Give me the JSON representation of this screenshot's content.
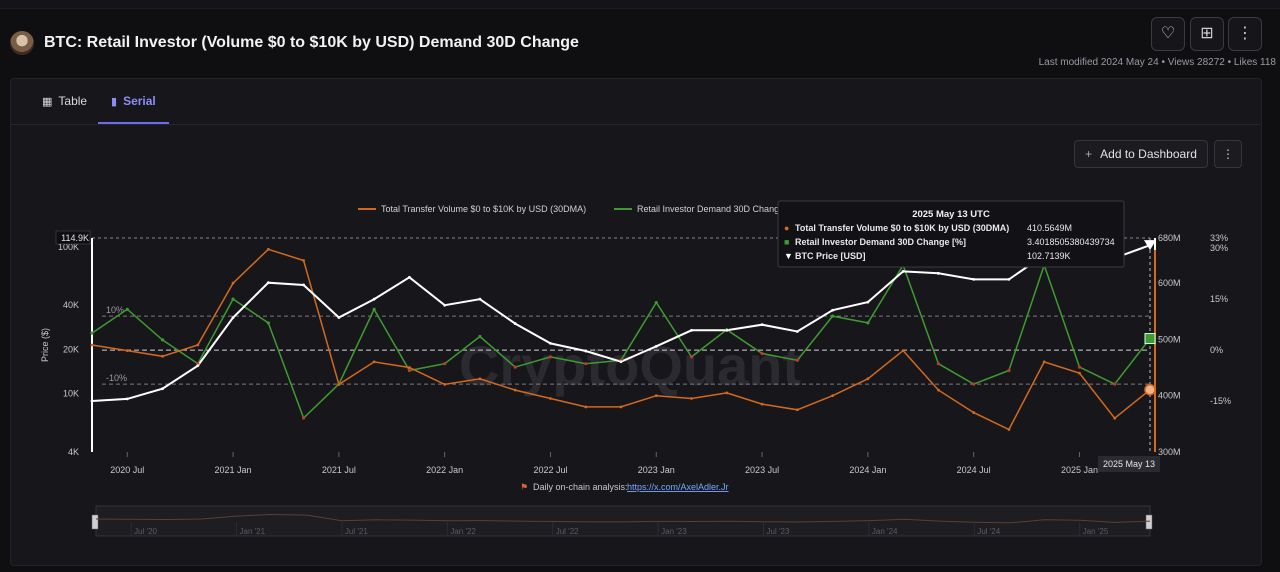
{
  "header": {
    "title": "BTC: Retail Investor (Volume $0 to $10K by USD) Demand 30D Change",
    "last_modified": "Last modified 2024 May 24",
    "views": "Views 28272",
    "likes": "Likes 118",
    "sep": "•",
    "buttons": [
      {
        "name": "like-button",
        "icon": "heart-icon",
        "glyph": "♡"
      },
      {
        "name": "bookmark-button",
        "icon": "bookmark-icon",
        "glyph": "⊞"
      },
      {
        "name": "more-button",
        "icon": "more-vertical-icon",
        "glyph": "⋮"
      }
    ]
  },
  "tabs": [
    {
      "label": "Table",
      "icon": "table-icon",
      "active": false
    },
    {
      "label": "Serial",
      "icon": "bar-chart-icon",
      "active": true
    }
  ],
  "toolbar": {
    "add_dashboard_label": "Add to Dashboard",
    "plus": "+",
    "menu_glyph": "⋮"
  },
  "colors": {
    "background": "#17171b",
    "volume": "#d2691e",
    "demand_pos": "#3f9b2f",
    "demand_neg": "#c0392b",
    "price": "#ffffff",
    "accent": "#6c6bf0"
  },
  "chart_data": {
    "type": "line",
    "legend": [
      {
        "name": "Total Transfer Volume $0 to $10K by USD (30DMA)",
        "color": "#d2691e"
      },
      {
        "name": "Retail Investor Demand 30D Change",
        "color": "#3f9b2f"
      }
    ],
    "legend_placement": "top-center",
    "watermark": "CryptoQuant",
    "x_ticks": [
      "2020 Jul",
      "2021 Jan",
      "2021 Jul",
      "2022 Jan",
      "2022 Jul",
      "2023 Jan",
      "2023 Jul",
      "2024 Jan",
      "2024 Jul",
      "2025 Jan"
    ],
    "x_range": [
      "2020-05",
      "2025-05"
    ],
    "left_axis": {
      "label": "Price ($)",
      "scale": "log",
      "ticks": [
        "4K",
        "10K",
        "20K",
        "40K",
        "100K"
      ],
      "range": [
        4,
        114.9
      ],
      "max_label": "114.9K"
    },
    "right_axis_volume": {
      "ticks": [
        "300M",
        "400M",
        "500M",
        "600M",
        "680M"
      ],
      "range": [
        300,
        680
      ]
    },
    "right_axis_pct": {
      "ticks": [
        "-15%",
        "0%",
        "15%",
        "30%",
        "33%"
      ],
      "range": [
        -30,
        33
      ]
    },
    "ref_lines": [
      {
        "label": "10%",
        "value": 10
      },
      {
        "label": "-10%",
        "value": -10
      }
    ],
    "series": [
      {
        "name": "BTC Price [USD]",
        "unit": "K USD",
        "axis": "left",
        "color": "#ffffff",
        "x": [
          "2020-05",
          "2020-07",
          "2020-09",
          "2020-11",
          "2021-01",
          "2021-03",
          "2021-05",
          "2021-07",
          "2021-09",
          "2021-11",
          "2022-01",
          "2022-03",
          "2022-05",
          "2022-07",
          "2022-09",
          "2022-11",
          "2023-01",
          "2023-03",
          "2023-05",
          "2023-07",
          "2023-09",
          "2023-11",
          "2024-01",
          "2024-03",
          "2024-05",
          "2024-07",
          "2024-09",
          "2024-11",
          "2025-01",
          "2025-03",
          "2025-05"
        ],
        "values": [
          8.9,
          9.2,
          10.8,
          15.5,
          33,
          57,
          55,
          33,
          44,
          62,
          40,
          44,
          30,
          22,
          19.5,
          16.5,
          21,
          27,
          27,
          29.5,
          26.5,
          37,
          42,
          68,
          66,
          60,
          60,
          88,
          100,
          84,
          102.7
        ]
      },
      {
        "name": "Total Transfer Volume $0 to $10K by USD (30DMA)",
        "unit": "M",
        "axis": "right_volume",
        "color": "#d2691e",
        "x": [
          "2020-05",
          "2020-07",
          "2020-09",
          "2020-11",
          "2021-01",
          "2021-03",
          "2021-05",
          "2021-07",
          "2021-09",
          "2021-11",
          "2022-01",
          "2022-03",
          "2022-05",
          "2022-07",
          "2022-09",
          "2022-11",
          "2023-01",
          "2023-03",
          "2023-05",
          "2023-07",
          "2023-09",
          "2023-11",
          "2024-01",
          "2024-03",
          "2024-05",
          "2024-07",
          "2024-09",
          "2024-11",
          "2025-01",
          "2025-03",
          "2025-05"
        ],
        "values": [
          490,
          480,
          470,
          490,
          600,
          660,
          640,
          420,
          460,
          450,
          420,
          430,
          410,
          395,
          380,
          380,
          400,
          395,
          405,
          385,
          375,
          400,
          430,
          480,
          410,
          370,
          340,
          460,
          440,
          360,
          410.56
        ]
      },
      {
        "name": "Retail Investor Demand 30D Change",
        "unit": "%",
        "axis": "right_pct",
        "color": "#3f9b2f",
        "x": [
          "2020-05",
          "2020-07",
          "2020-09",
          "2020-11",
          "2021-01",
          "2021-03",
          "2021-05",
          "2021-07",
          "2021-09",
          "2021-11",
          "2022-01",
          "2022-03",
          "2022-05",
          "2022-07",
          "2022-09",
          "2022-11",
          "2023-01",
          "2023-03",
          "2023-05",
          "2023-07",
          "2023-09",
          "2023-11",
          "2024-01",
          "2024-03",
          "2024-05",
          "2024-07",
          "2024-09",
          "2024-11",
          "2025-01",
          "2025-03",
          "2025-05"
        ],
        "values": [
          5,
          12,
          3,
          -4,
          15,
          8,
          -20,
          -10,
          12,
          -6,
          -4,
          4,
          -5,
          -2,
          -4,
          -3,
          14,
          -2,
          6,
          -1,
          -3,
          10,
          8,
          25,
          -4,
          -10,
          -6,
          25,
          -5,
          -10,
          3.4
        ]
      }
    ],
    "tooltip": {
      "date": "2025 May 13 UTC",
      "rows": [
        {
          "marker": "●",
          "color": "#d2691e",
          "label": "Total Transfer Volume $0 to $10K by USD (30DMA)",
          "value": "410.5649M"
        },
        {
          "marker": "■",
          "color": "#3f9b2f",
          "label": "Retail Investor Demand 30D Change [%]",
          "value": "3.4018505380439734"
        },
        {
          "marker": "▼",
          "color": "#ffffff",
          "label": "BTC Price [USD]",
          "value": "102.7139K"
        }
      ]
    },
    "crosshair_label": "2025 May 13",
    "footnote": {
      "text": "Daily on-chain analysis:",
      "link": "https://x.com/AxelAdler.Jr",
      "flag": "⚑"
    },
    "navigator_ticks": [
      "Jul '20",
      "Jan '21",
      "Jul '21",
      "Jan '22",
      "Jul '22",
      "Jan '23",
      "Jul '23",
      "Jan '24",
      "Jul '24",
      "Jan '25"
    ]
  }
}
